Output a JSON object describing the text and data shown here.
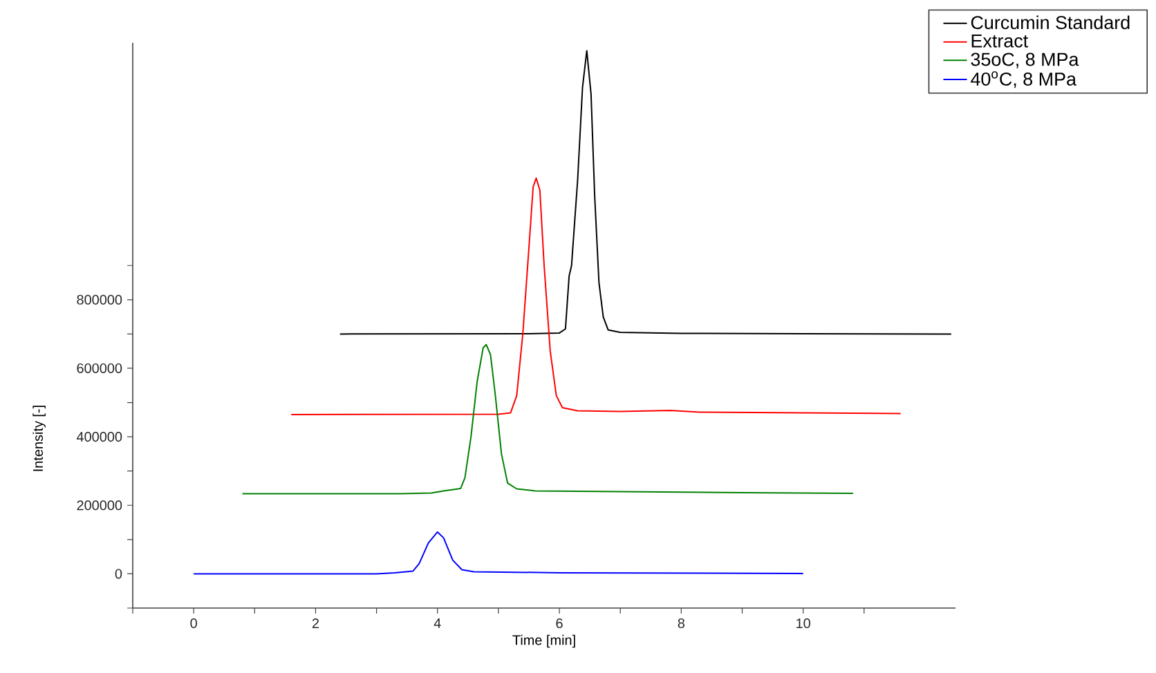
{
  "chart_data": {
    "type": "line",
    "xlabel": "Time [min]",
    "ylabel": "Intensity [-]",
    "xlim": [
      -1,
      12.5
    ],
    "ylim": [
      -100000,
      1550000
    ],
    "xticks": [
      {
        "value": -1,
        "label": null
      },
      0,
      {
        "value": 1,
        "label": null
      },
      2,
      {
        "value": 3,
        "label": null
      },
      4,
      {
        "value": 5,
        "label": null
      },
      6,
      {
        "value": 7,
        "label": null
      },
      8,
      {
        "value": 9,
        "label": null
      },
      10,
      {
        "value": 11,
        "label": null
      }
    ],
    "yticks": [
      {
        "value": -100000,
        "label": null
      },
      0,
      {
        "value": 100000,
        "label": null
      },
      200000,
      {
        "value": 300000,
        "label": null
      },
      400000,
      {
        "value": 500000,
        "label": null
      },
      600000,
      {
        "value": 700000,
        "label": null
      },
      800000,
      {
        "value": 900000,
        "label": null
      }
    ],
    "legend": "top right",
    "grid": false,
    "marker": "none",
    "line_style": "solid",
    "series": [
      {
        "name": "Curcumin Standard",
        "color": "#000000",
        "x": [
          2.4,
          5.5,
          6.0,
          6.1,
          6.16,
          6.2,
          6.3,
          6.38,
          6.45,
          6.52,
          6.58,
          6.65,
          6.72,
          6.8,
          7.0,
          8,
          10,
          12.43
        ],
        "values": [
          700000,
          701000,
          703000,
          715000,
          869000,
          900000,
          1150000,
          1420000,
          1527000,
          1400000,
          1100000,
          850000,
          750000,
          712000,
          705000,
          702000,
          701000,
          700000
        ]
      },
      {
        "name": "Extract",
        "color": "#ff0000",
        "x": [
          1.6,
          5.0,
          5.2,
          5.3,
          5.4,
          5.5,
          5.57,
          5.62,
          5.68,
          5.75,
          5.85,
          5.95,
          6.05,
          6.3,
          7,
          7.82,
          8.3,
          10,
          11.6
        ],
        "values": [
          465000,
          466000,
          470000,
          520000,
          700000,
          950000,
          1130000,
          1155000,
          1120000,
          900000,
          650000,
          520000,
          485000,
          476000,
          474000,
          477000,
          472000,
          470000,
          468000
        ]
      },
      {
        "name": "35oC, 8 MPa",
        "color": "#008000",
        "x": [
          0.8,
          3.4,
          3.9,
          4.1,
          4.38,
          4.45,
          4.55,
          4.65,
          4.75,
          4.8,
          4.87,
          4.95,
          5.05,
          5.15,
          5.3,
          5.6,
          7,
          9,
          10.82
        ],
        "values": [
          234000,
          234000,
          236000,
          242000,
          249000,
          280000,
          400000,
          560000,
          660000,
          669000,
          640000,
          520000,
          350000,
          265000,
          248000,
          242000,
          240000,
          237000,
          235000
        ]
      },
      {
        "name": "40$^{o}$C, 8 MPa",
        "color": "#0000ff",
        "x": [
          0,
          3.0,
          3.3,
          3.6,
          3.7,
          3.85,
          4.0,
          4.1,
          4.25,
          4.4,
          4.6,
          6,
          10
        ],
        "values": [
          0,
          0,
          3000,
          8000,
          30000,
          90000,
          122000,
          105000,
          40000,
          12000,
          6000,
          3000,
          1000
        ]
      }
    ]
  }
}
